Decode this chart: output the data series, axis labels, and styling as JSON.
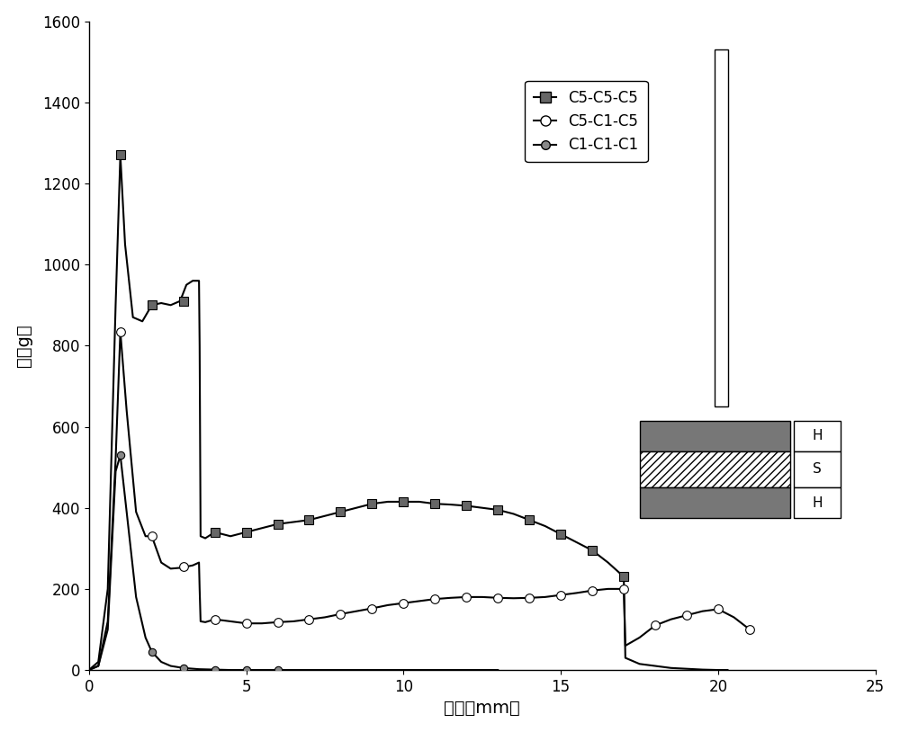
{
  "title": "",
  "xlabel": "距离（mm）",
  "ylabel": "力（g）",
  "xlim": [
    0,
    25
  ],
  "ylim": [
    0,
    1600
  ],
  "xticks": [
    0,
    5,
    10,
    15,
    20,
    25
  ],
  "yticks": [
    0,
    200,
    400,
    600,
    800,
    1000,
    1200,
    1400,
    1600
  ],
  "background_color": "#ffffff",
  "series1_x": [
    0.0,
    0.3,
    0.6,
    0.85,
    1.0,
    1.15,
    1.4,
    1.7,
    2.0,
    2.3,
    2.6,
    2.9,
    3.1,
    3.3,
    3.5,
    3.52,
    3.55,
    3.7,
    4.0,
    4.5,
    5.0,
    5.5,
    6.0,
    6.5,
    7.0,
    7.5,
    8.0,
    8.5,
    9.0,
    9.5,
    10.0,
    10.5,
    11.0,
    11.5,
    12.0,
    12.5,
    13.0,
    13.5,
    14.0,
    14.5,
    15.0,
    15.5,
    16.0,
    16.5,
    17.0,
    17.02,
    17.05,
    17.5,
    18.0,
    18.5,
    19.0,
    19.5,
    20.0,
    20.3
  ],
  "series1_y": [
    0,
    20,
    200,
    900,
    1270,
    1050,
    870,
    860,
    900,
    905,
    900,
    910,
    950,
    960,
    960,
    800,
    330,
    325,
    340,
    330,
    340,
    350,
    360,
    365,
    370,
    380,
    390,
    400,
    410,
    415,
    415,
    415,
    410,
    408,
    405,
    400,
    395,
    385,
    370,
    355,
    335,
    315,
    295,
    265,
    230,
    150,
    30,
    15,
    10,
    5,
    3,
    1,
    0,
    0
  ],
  "series2_x": [
    0.0,
    0.3,
    0.6,
    0.85,
    1.0,
    1.2,
    1.5,
    1.8,
    2.0,
    2.3,
    2.6,
    2.9,
    3.1,
    3.3,
    3.5,
    3.52,
    3.55,
    3.7,
    4.0,
    4.5,
    5.0,
    5.5,
    6.0,
    6.5,
    7.0,
    7.5,
    8.0,
    8.5,
    9.0,
    9.5,
    10.0,
    10.5,
    11.0,
    11.5,
    12.0,
    12.5,
    13.0,
    13.5,
    14.0,
    14.5,
    15.0,
    15.5,
    16.0,
    16.5,
    17.0,
    17.02,
    17.05,
    17.5,
    18.0,
    18.5,
    19.0,
    19.5,
    20.0,
    20.5,
    21.0
  ],
  "series2_y": [
    0,
    10,
    120,
    520,
    835,
    640,
    390,
    330,
    330,
    265,
    250,
    252,
    255,
    258,
    265,
    200,
    120,
    118,
    125,
    120,
    115,
    115,
    118,
    120,
    125,
    130,
    138,
    145,
    152,
    160,
    165,
    170,
    175,
    178,
    180,
    180,
    178,
    177,
    178,
    180,
    185,
    190,
    196,
    200,
    200,
    150,
    60,
    80,
    110,
    125,
    135,
    145,
    150,
    130,
    100
  ],
  "series3_x": [
    0.0,
    0.3,
    0.6,
    0.85,
    1.0,
    1.2,
    1.5,
    1.8,
    2.0,
    2.3,
    2.6,
    3.0,
    3.5,
    4.0,
    4.5,
    5.0,
    6.0,
    7.0,
    8.0,
    9.0,
    10.0,
    11.0,
    12.0,
    13.0
  ],
  "series3_y": [
    0,
    10,
    100,
    490,
    530,
    390,
    180,
    80,
    45,
    20,
    10,
    5,
    2,
    1,
    0,
    0,
    0,
    0,
    0,
    0,
    0,
    0,
    0,
    0
  ],
  "mk1_x": [
    1.0,
    2.0,
    3.0,
    4.0,
    5.0,
    6.0,
    7.0,
    8.0,
    9.0,
    10.0,
    11.0,
    12.0,
    13.0,
    14.0,
    15.0,
    16.0,
    17.0
  ],
  "mk1_y": [
    1270,
    900,
    910,
    340,
    340,
    360,
    370,
    390,
    410,
    415,
    410,
    405,
    395,
    370,
    335,
    295,
    230
  ],
  "mk2_x": [
    1.0,
    2.0,
    3.0,
    4.0,
    5.0,
    6.0,
    7.0,
    8.0,
    9.0,
    10.0,
    11.0,
    12.0,
    13.0,
    14.0,
    15.0,
    16.0,
    17.0,
    18.0,
    19.0,
    20.0,
    21.0
  ],
  "mk2_y": [
    835,
    330,
    255,
    125,
    115,
    118,
    125,
    138,
    152,
    165,
    175,
    180,
    178,
    178,
    185,
    196,
    200,
    110,
    135,
    150,
    100
  ],
  "mk3_x": [
    1.0,
    2.0,
    3.0,
    4.0,
    5.0,
    6.0
  ],
  "mk3_y": [
    530,
    45,
    5,
    1,
    0,
    0
  ],
  "font_size_label": 14,
  "font_size_tick": 12,
  "font_size_legend": 12,
  "line_width": 1.5,
  "marker_size": 7
}
